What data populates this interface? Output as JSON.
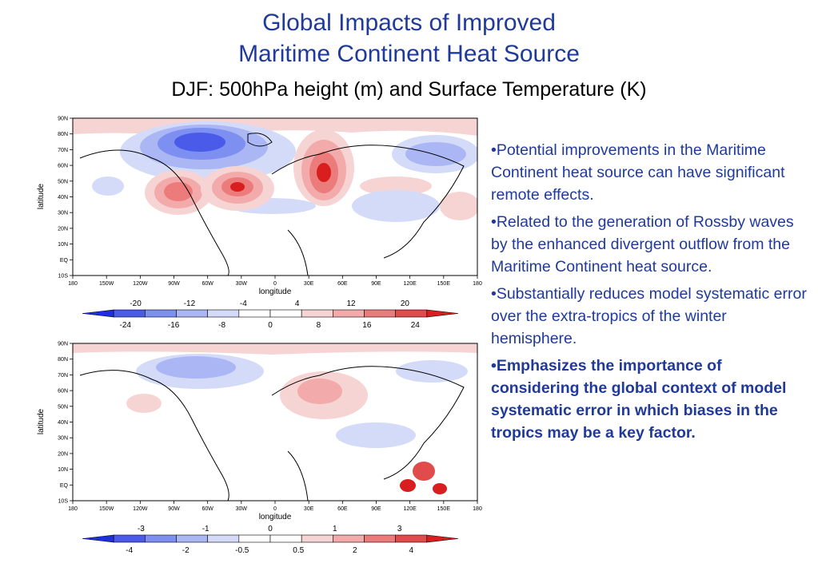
{
  "title": {
    "line1": "Global Impacts of Improved",
    "line2": "Maritime Continent Heat Source",
    "subtitle": "DJF: 500hPa height (m) and Surface Temperature (K)"
  },
  "maps": [
    {
      "xlabel": "longitude",
      "ylabel": "latitude",
      "xticks": [
        "180",
        "150W",
        "120W",
        "90W",
        "60W",
        "30W",
        "0",
        "30E",
        "60E",
        "90E",
        "120E",
        "150E",
        "180"
      ],
      "yticks": [
        "90N",
        "80N",
        "70N",
        "60N",
        "50N",
        "40N",
        "30N",
        "20N",
        "10N",
        "EQ",
        "10S"
      ],
      "colorbar_upper": [
        "-20",
        "-12",
        "-4",
        "4",
        "12",
        "20"
      ],
      "colorbar_lower": [
        "-24",
        "-16",
        "-8",
        "0",
        "8",
        "16",
        "24"
      ],
      "colors": [
        "#1f2fe0",
        "#4a5bea",
        "#7d8ff0",
        "#aab7f4",
        "#d3dbf8",
        "#ffffff",
        "#ffffff",
        "#f7d4d4",
        "#f3aaaa",
        "#ec7c7c",
        "#e04c4c",
        "#d81e1e"
      ]
    },
    {
      "xlabel": "longitude",
      "ylabel": "latitude",
      "xticks": [
        "180",
        "150W",
        "120W",
        "90W",
        "60W",
        "30W",
        "0",
        "30E",
        "60E",
        "90E",
        "120E",
        "150E",
        "180"
      ],
      "yticks": [
        "90N",
        "80N",
        "70N",
        "60N",
        "50N",
        "40N",
        "30N",
        "20N",
        "10N",
        "EQ",
        "10S"
      ],
      "colorbar_upper": [
        "-3",
        "-1",
        "0",
        "1",
        "3"
      ],
      "colorbar_lower": [
        "-4",
        "-2",
        "-0.5",
        "0.5",
        "2",
        "4"
      ],
      "colors": [
        "#1f2fe0",
        "#4a5bea",
        "#7d8ff0",
        "#aab7f4",
        "#d3dbf8",
        "#ffffff",
        "#ffffff",
        "#f7d4d4",
        "#f3aaaa",
        "#ec7c7c",
        "#e04c4c",
        "#d81e1e"
      ]
    }
  ],
  "bullets": [
    "•Potential improvements in the Maritime Continent heat source can have significant remote effects.",
    "•Related to the generation of Rossby waves by the enhanced divergent outflow from the Maritime Continent heat source.",
    "•Substantially reduces model systematic error over the extra-tropics of the winter hemisphere.",
    "•Emphasizes the importance of considering the  global context of model systematic error in which biases in the tropics may be a key factor."
  ]
}
